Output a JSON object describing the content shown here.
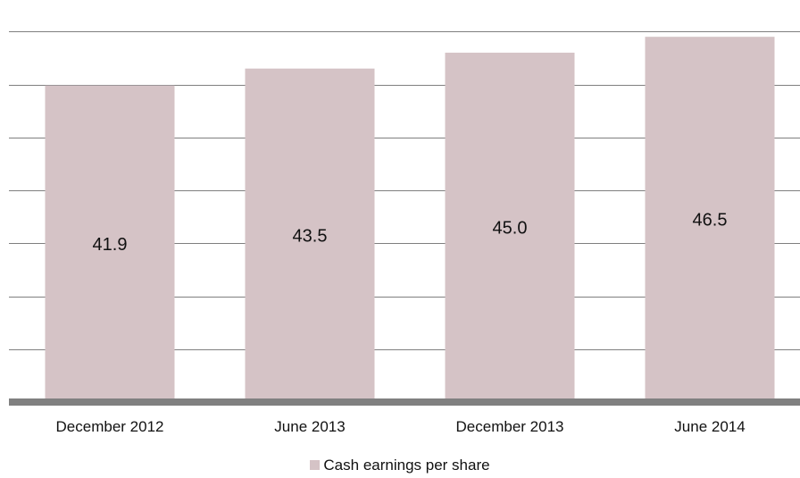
{
  "chart_data": {
    "type": "bar",
    "categories": [
      "December 2012",
      "June 2013",
      "December 2013",
      "June 2014"
    ],
    "series": [
      {
        "name": "Cash earnings per share",
        "values": [
          41.9,
          43.5,
          45.0,
          46.5
        ]
      }
    ],
    "data_labels": [
      "41.9",
      "43.5",
      "45.0",
      "46.5"
    ],
    "ylim": [
      12,
      48
    ],
    "y_gridline_step": 5,
    "grid": true,
    "legend_position": "bottom-center",
    "bar_color": "#d5c3c6",
    "gridline_color": "#7f7f7f",
    "axis_color": "#808080",
    "text_color": "#111111"
  }
}
